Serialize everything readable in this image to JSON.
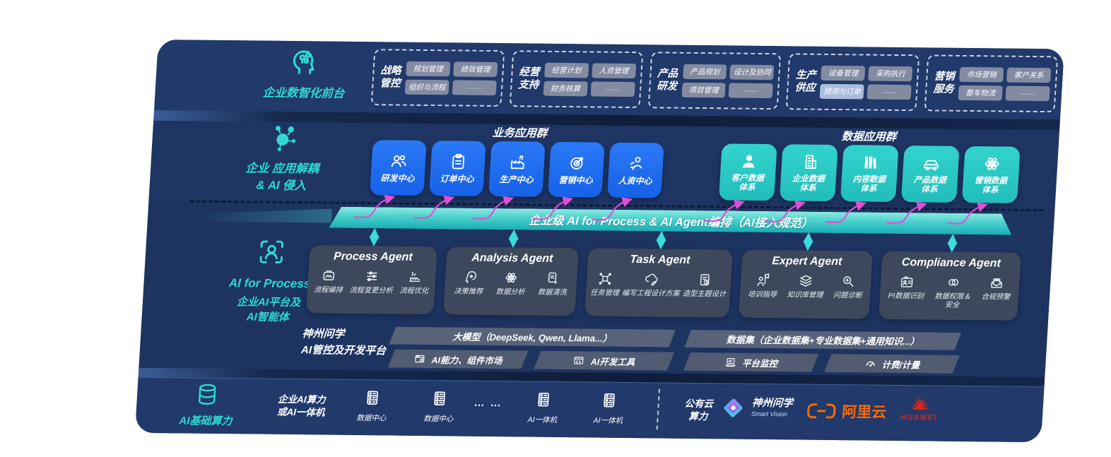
{
  "front_stage": {
    "label": "企业数智化前台",
    "groups": [
      {
        "title": "战略\n管控",
        "chips": [
          "规划管理",
          "绩效管理",
          "组织与流程",
          "……"
        ]
      },
      {
        "title": "经营\n支持",
        "chips": [
          "经营计划",
          "人资管理",
          "财务核算",
          "……"
        ]
      },
      {
        "title": "产品\n研发",
        "chips": [
          "产品规划",
          "设计及协同",
          "项目管理",
          "……"
        ]
      },
      {
        "title": "生产\n供应",
        "chips": [
          "设备管理",
          "采购执行",
          "预测与订单",
          "……"
        ],
        "highlight_chip_index": 2
      },
      {
        "title": "营销\n服务",
        "chips": [
          "市场营销",
          "客户关系",
          "整车物流",
          "……"
        ]
      }
    ]
  },
  "app_layer": {
    "label": "企业 应用解耦\n& AI 侵入",
    "business_group": {
      "title": "业务应用群",
      "cards": [
        {
          "label": "研发中心",
          "icon": "team-icon"
        },
        {
          "label": "订单中心",
          "icon": "clipboard-icon"
        },
        {
          "label": "生产中心",
          "icon": "factory-icon"
        },
        {
          "label": "营销中心",
          "icon": "target-icon"
        },
        {
          "label": "人资中心",
          "icon": "hr-icon"
        }
      ]
    },
    "data_group": {
      "title": "数据应用群",
      "cards": [
        {
          "label": "客户数据\n体系",
          "icon": "user-icon"
        },
        {
          "label": "企业数据\n体系",
          "icon": "building-icon"
        },
        {
          "label": "内容数据\n体系",
          "icon": "content-icon"
        },
        {
          "label": "产品数据\n体系",
          "icon": "car-icon"
        },
        {
          "label": "营销数据\n体系",
          "icon": "atom-icon"
        }
      ]
    }
  },
  "orchestration_bar": {
    "label": "企业级 AI for Process & AI Agent编排（AI接入规范）"
  },
  "agent_layer": {
    "label_title": "AI for Process",
    "label_sub": "企业AI平台及\nAI智能体",
    "agents": [
      {
        "title": "Process Agent",
        "items": [
          {
            "label": "流程编排",
            "icon": "flow-orchestration-icon"
          },
          {
            "label": "流程变更分析",
            "icon": "sliders-icon"
          },
          {
            "label": "流程优化",
            "icon": "optimize-icon"
          }
        ]
      },
      {
        "title": "Analysis Agent",
        "items": [
          {
            "label": "决策推荐",
            "icon": "decision-icon"
          },
          {
            "label": "数据分析",
            "icon": "analysis-icon"
          },
          {
            "label": "数据清洗",
            "icon": "clean-icon"
          }
        ]
      },
      {
        "title": "Task Agent",
        "items": [
          {
            "label": "任务管理",
            "icon": "task-network-icon"
          },
          {
            "label": "编写工程设计方案",
            "icon": "cloud-design-icon"
          },
          {
            "label": "造型主题设计",
            "icon": "style-design-icon"
          }
        ]
      },
      {
        "title": "Expert Agent",
        "items": [
          {
            "label": "培训指导",
            "icon": "training-icon"
          },
          {
            "label": "知识库管理",
            "icon": "knowledge-layers-icon"
          },
          {
            "label": "问题诊断",
            "icon": "diagnosis-icon"
          }
        ]
      },
      {
        "title": "Compliance Agent",
        "items": [
          {
            "label": "PI数据识别",
            "icon": "id-card-icon"
          },
          {
            "label": "数据权限＆\n安全",
            "icon": "permission-rings-icon"
          },
          {
            "label": "合规预警",
            "icon": "alert-mail-icon"
          }
        ]
      }
    ]
  },
  "platform_layer": {
    "label": "神州问学\nAI管控及开发平台",
    "model_bar": "大模型（DeepSeek, Qwen, Llama...）",
    "model_tools": [
      {
        "label": "AI能力、组件市场",
        "icon": "component-market-icon"
      },
      {
        "label": "AI开发工具",
        "icon": "devtools-icon"
      }
    ],
    "data_bar": "数据集（企业数据集+专业数据集+通用知识...）",
    "data_tools": [
      {
        "label": "平台监控",
        "icon": "monitor-icon"
      },
      {
        "label": "计费/计量",
        "icon": "meter-icon"
      }
    ]
  },
  "infra_layer": {
    "label": "AI基础算力",
    "compute_label": "企业AI算力\n或AI一体机",
    "nodes": [
      {
        "label": "数据中心",
        "icon": "server-icon"
      },
      {
        "label": "数据中心",
        "icon": "server-icon"
      },
      {
        "label": "… …"
      },
      {
        "label": "AI一体机",
        "icon": "server-icon"
      },
      {
        "label": "AI一体机",
        "icon": "server-icon"
      }
    ],
    "public_cloud": "公有云\n算力",
    "vendors": [
      {
        "name": "神州问学",
        "sub": "Smart Vision"
      },
      {
        "name": "阿里云"
      },
      {
        "name": "HUAWEI"
      }
    ]
  },
  "colors": {
    "slab_navy": "#1E3563",
    "accent_teal": "#2EDAD2",
    "card_blue": "#1B6BF2",
    "card_teal": "#2BCBC9",
    "ribbon_teal": "#49CFCB",
    "arrow_magenta": "#E14FD6",
    "chip_gray": "#8C93A6",
    "chip_highlight": "#A9BEDE",
    "ali_orange": "#FF6A00",
    "huawei_red": "#E2231A"
  }
}
